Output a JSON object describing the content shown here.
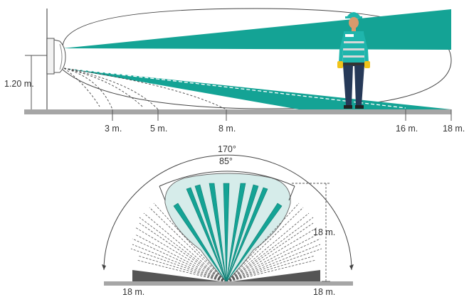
{
  "side_view": {
    "mount_height_label": "1.20 m.",
    "distance_labels": [
      "3 m.",
      "5 m.",
      "8 m.",
      "16 m.",
      "18 m."
    ]
  },
  "top_view": {
    "wide_angle_label": "170°",
    "narrow_angle_label": "85°",
    "range_label": "18 m.",
    "left_range_label": "18 m.",
    "right_range_label": "18 m."
  },
  "colors": {
    "teal": "#14a395",
    "teal_dark": "#0d7f74",
    "teal_light": "#d6ecea",
    "ground": "#a6a6a6",
    "ground_dark": "#555555",
    "outline": "#444444",
    "skin": "#d99a6c",
    "helmet": "#1fb5ac",
    "pants": "#263958",
    "glove": "#f0c31a"
  },
  "icons": [
    "pir-sensor-icon",
    "worker-person-icon"
  ]
}
